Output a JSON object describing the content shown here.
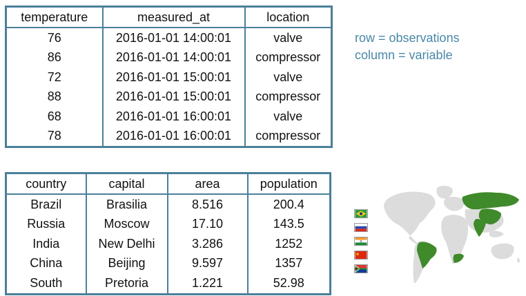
{
  "notes": {
    "line1": "row = observations",
    "line2": "column = variable"
  },
  "sensor_table": {
    "headers": [
      "temperature",
      "measured_at",
      "location"
    ],
    "rows": [
      [
        "76",
        "2016-01-01 14:00:01",
        "valve"
      ],
      [
        "86",
        "2016-01-01 14:00:01",
        "compressor"
      ],
      [
        "72",
        "2016-01-01 15:00:01",
        "valve"
      ],
      [
        "88",
        "2016-01-01 15:00:01",
        "compressor"
      ],
      [
        "68",
        "2016-01-01 16:00:01",
        "valve"
      ],
      [
        "78",
        "2016-01-01 16:00:01",
        "compressor"
      ]
    ]
  },
  "country_table": {
    "headers": [
      "country",
      "capital",
      "area",
      "population"
    ],
    "rows": [
      [
        "Brazil",
        "Brasilia",
        "8.516",
        "200.4"
      ],
      [
        "Russia",
        "Moscow",
        "17.10",
        "143.5"
      ],
      [
        "India",
        "New Delhi",
        "3.286",
        "1252"
      ],
      [
        "China",
        "Beijing",
        "9.597",
        "1357"
      ],
      [
        "South",
        "Pretoria",
        "1.221",
        "52.98"
      ]
    ]
  },
  "colors": {
    "table_border": "#4a7f9a",
    "note_text": "#4a88a8",
    "map_land": "#dcdcdc",
    "map_highlight": "#3f8a2a"
  },
  "flag_icons": [
    "brazil-flag-icon",
    "russia-flag-icon",
    "india-flag-icon",
    "china-flag-icon",
    "south-africa-flag-icon"
  ]
}
